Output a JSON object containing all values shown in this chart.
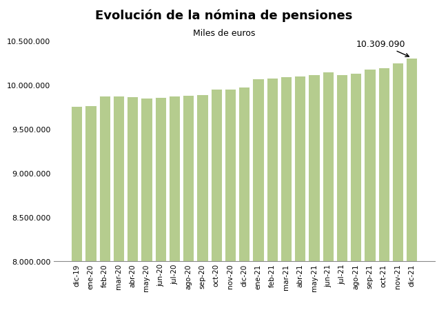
{
  "title": "Evolución de la nómina de pensiones",
  "subtitle": "Miles de euros",
  "categories": [
    "dic-19",
    "ene-20",
    "feb-20",
    "mar-20",
    "abr-20",
    "may-20",
    "jun-20",
    "jul-20",
    "ago-20",
    "sep-20",
    "oct-20",
    "nov-20",
    "dic-20",
    "ene-21",
    "feb-21",
    "mar-21",
    "abr-21",
    "may-21",
    "jun-21",
    "jul-21",
    "ago-21",
    "sep-21",
    "oct-21",
    "nov-21",
    "dic-21"
  ],
  "values": [
    9762000,
    9770000,
    9880000,
    9880000,
    9870000,
    9858000,
    9860000,
    9875000,
    9882000,
    9892000,
    9952000,
    9958000,
    9982000,
    10072000,
    10078000,
    10098000,
    10108000,
    10118000,
    10152000,
    10122000,
    10132000,
    10182000,
    10198000,
    10252000,
    10309090
  ],
  "bar_color": "#b5cc8e",
  "ylim_min": 8000000,
  "ylim_max": 10500000,
  "ytick_step": 500000,
  "annotation_value": "10.309.090",
  "annotation_index": 24,
  "background_color": "#ffffff",
  "title_fontsize": 13,
  "subtitle_fontsize": 9,
  "tick_fontsize": 8,
  "xtick_fontsize": 7.5
}
